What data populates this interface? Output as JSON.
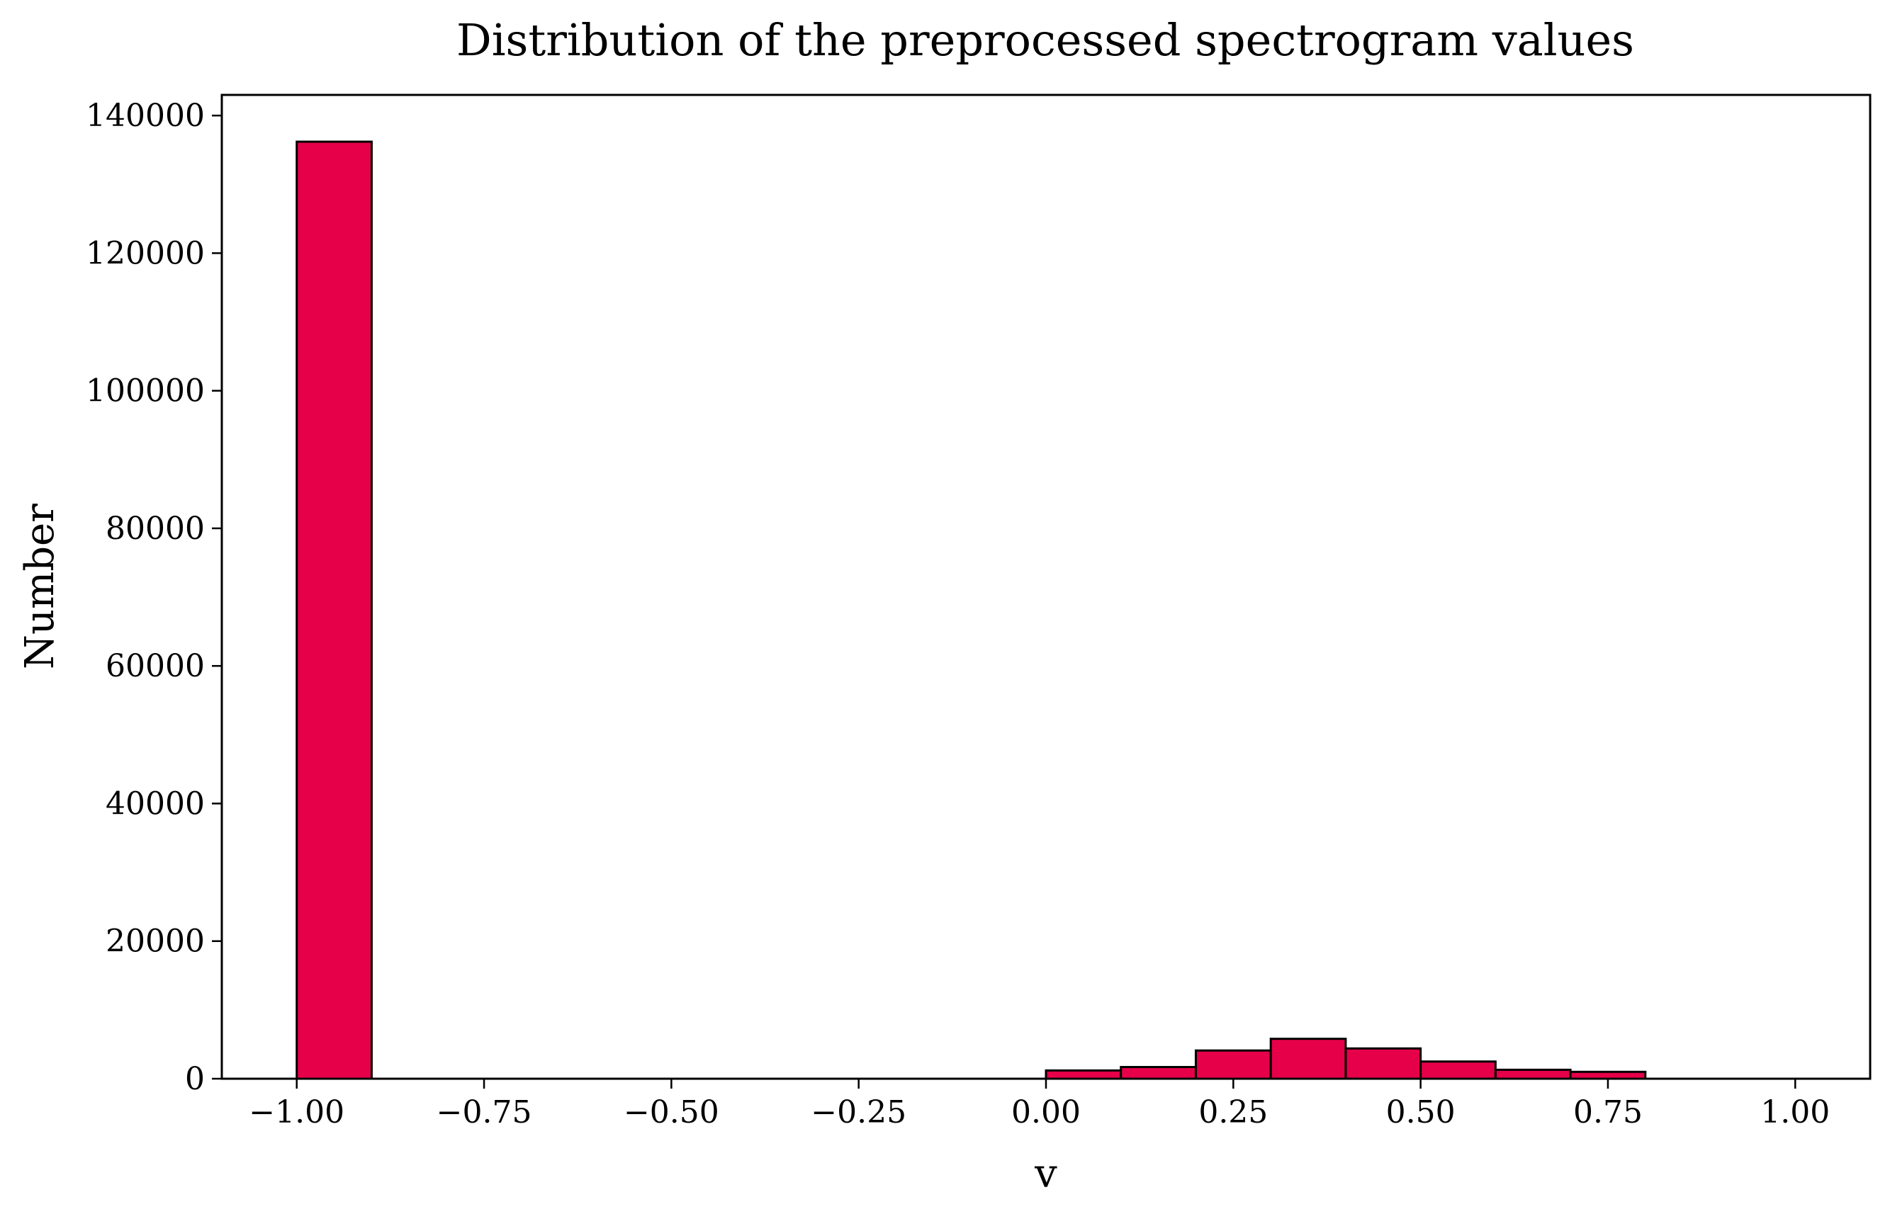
{
  "chart_data": {
    "type": "bar",
    "title": "Distribution of the preprocessed spectrogram values",
    "xlabel": "v",
    "ylabel": "Number",
    "xlim": [
      -1.1,
      1.1
    ],
    "ylim": [
      0,
      143000
    ],
    "x_ticks": [
      -1.0,
      -0.75,
      -0.5,
      -0.25,
      0.0,
      0.25,
      0.5,
      0.75,
      1.0
    ],
    "x_tick_labels": [
      "−1.00",
      "−0.75",
      "−0.50",
      "−0.25",
      "0.00",
      "0.25",
      "0.50",
      "0.75",
      "1.00"
    ],
    "y_ticks": [
      0,
      20000,
      40000,
      60000,
      80000,
      100000,
      120000,
      140000
    ],
    "y_tick_labels": [
      "0",
      "20000",
      "40000",
      "60000",
      "80000",
      "100000",
      "120000",
      "140000"
    ],
    "bin_edges": [
      -1.0,
      -0.9,
      -0.8,
      -0.7,
      -0.6,
      -0.5,
      -0.4,
      -0.3,
      -0.2,
      -0.1,
      0.0,
      0.1,
      0.2,
      0.3,
      0.4,
      0.5,
      0.6,
      0.7,
      0.8,
      0.9,
      1.0
    ],
    "values": [
      136200,
      0,
      0,
      0,
      0,
      0,
      0,
      0,
      0,
      0,
      1200,
      1700,
      4100,
      5800,
      4400,
      2500,
      1300,
      1000,
      0,
      0
    ],
    "grid": false,
    "colors": {
      "bar_fill": "#e60049",
      "bar_edge": "#000000",
      "axes": "#000000",
      "background": "#ffffff"
    }
  }
}
